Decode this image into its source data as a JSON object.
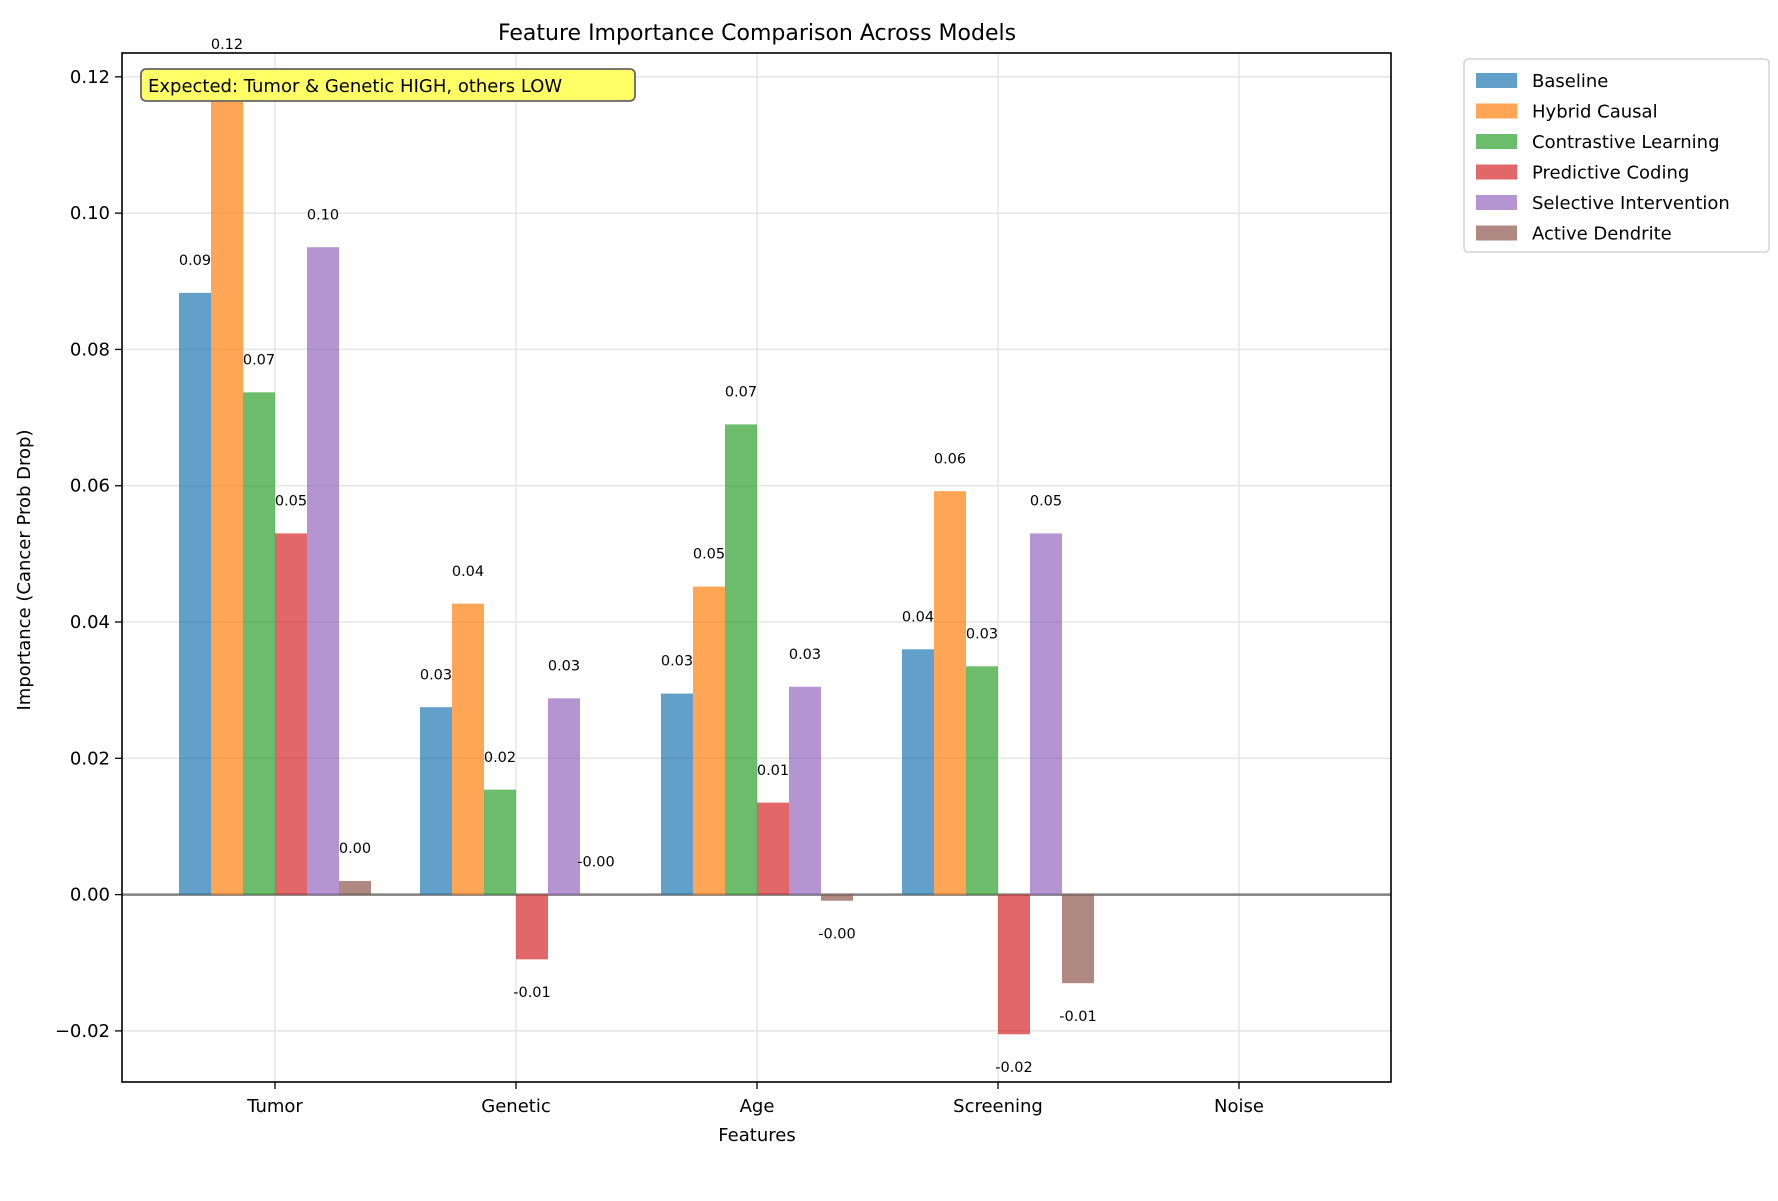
{
  "chart_data": {
    "type": "bar",
    "title": "Feature Importance Comparison Across Models",
    "xlabel": "Features",
    "ylabel": "Importance (Cancer Prob Drop)",
    "categories": [
      "Tumor",
      "Genetic",
      "Age",
      "Screening",
      "Noise"
    ],
    "ylim": [
      -0.0275,
      0.1235
    ],
    "yticks": [
      -0.02,
      0.0,
      0.02,
      0.04,
      0.06,
      0.08,
      0.1,
      0.12
    ],
    "ytick_labels": [
      "−0.02",
      "0.00",
      "0.02",
      "0.04",
      "0.06",
      "0.08",
      "0.10",
      "0.12"
    ],
    "grid": true,
    "legend_position": "outside top-right",
    "zero_line": true,
    "annotation": "Expected: Tumor & Genetic HIGH, others LOW",
    "series": [
      {
        "name": "Baseline",
        "color": "#1f77b4",
        "values": [
          0.0883,
          0.0275,
          0.0295,
          0.036,
          0.0
        ],
        "labels": [
          "0.09",
          "0.03",
          "0.03",
          "0.04",
          ""
        ]
      },
      {
        "name": "Hybrid Causal",
        "color": "#ff7f0e",
        "values": [
          0.12,
          0.0427,
          0.0452,
          0.0592,
          0.0
        ],
        "labels": [
          "0.12",
          "0.04",
          "0.05",
          "0.06",
          ""
        ]
      },
      {
        "name": "Contrastive Learning",
        "color": "#2ca02c",
        "values": [
          0.0737,
          0.0154,
          0.069,
          0.0335,
          0.0
        ],
        "labels": [
          "0.07",
          "0.02",
          "0.07",
          "0.03",
          ""
        ]
      },
      {
        "name": "Predictive Coding",
        "color": "#d62728",
        "values": [
          0.053,
          -0.0095,
          0.0135,
          -0.0205,
          0.0
        ],
        "labels": [
          "0.05",
          "-0.01",
          "0.01",
          "-0.02",
          ""
        ]
      },
      {
        "name": "Selective Intervention",
        "color": "#9467bd",
        "values": [
          0.095,
          0.0288,
          0.0305,
          0.053,
          0.0
        ],
        "labels": [
          "0.10",
          "0.03",
          "0.03",
          "0.05",
          ""
        ]
      },
      {
        "name": "Active Dendrite",
        "color": "#8c564b",
        "values": [
          0.002,
          0.0,
          -0.0009,
          -0.013,
          0.0
        ],
        "labels": [
          "0.00",
          "-0.00",
          "-0.00",
          "-0.01",
          ""
        ]
      }
    ]
  }
}
